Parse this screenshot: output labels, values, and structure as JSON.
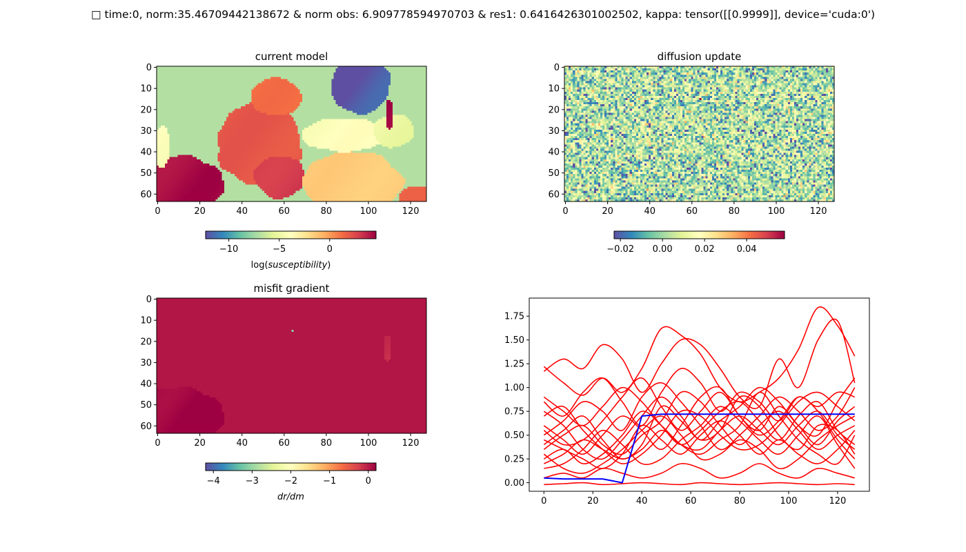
{
  "figure": {
    "suptitle": "□ time:0, norm:35.46709442138672 & norm obs: 6.909778594970703 & res1: 0.6416426301002502, kappa: tensor([[0.9999]], device='cuda:0')"
  },
  "colormap": {
    "name": "Spectral_r",
    "stops": [
      "#5e4fa2",
      "#3288bd",
      "#66c2a5",
      "#abdda4",
      "#e6f598",
      "#ffffbf",
      "#fee08b",
      "#fdae61",
      "#f46d43",
      "#d53e4f",
      "#9e0142"
    ]
  },
  "line_colors": {
    "samples": "#ff0000",
    "reference": "#0000ff"
  },
  "chart_data": [
    {
      "type": "heatmap",
      "id": "current-model",
      "title": "current model",
      "grid_shape": [
        64,
        128
      ],
      "x_ticks": [
        "0",
        "20",
        "40",
        "60",
        "80",
        "100",
        "120"
      ],
      "y_ticks": [
        "0",
        "10",
        "20",
        "30",
        "40",
        "50",
        "60"
      ],
      "x_tick_values": [
        0,
        20,
        40,
        60,
        80,
        100,
        120
      ],
      "y_tick_values": [
        0,
        10,
        20,
        30,
        40,
        50,
        60
      ],
      "colorbar": {
        "vmin": -12.3,
        "vmax": 4.6,
        "ticks": [
          "−10",
          "−5",
          "0"
        ],
        "tick_values": [
          -10,
          -5,
          0
        ],
        "label": "log(susceptibility)"
      },
      "regions": [
        {
          "shape": "field",
          "value": -7
        },
        {
          "shape": "ellipse",
          "cx": 8,
          "cy": 56,
          "rx": 24,
          "ry": 14,
          "value": 4.3
        },
        {
          "shape": "ellipse",
          "cx": 48,
          "cy": 36,
          "rx": 20,
          "ry": 20,
          "value": 2
        },
        {
          "shape": "ellipse",
          "cx": 58,
          "cy": 52,
          "rx": 12,
          "ry": 10,
          "value": 3
        },
        {
          "shape": "ellipse",
          "cx": 56,
          "cy": 14,
          "rx": 12,
          "ry": 9,
          "value": 1.2
        },
        {
          "shape": "ellipse",
          "cx": 92,
          "cy": 54,
          "rx": 24,
          "ry": 14,
          "value": -1.5
        },
        {
          "shape": "ellipse",
          "cx": 124,
          "cy": 62,
          "rx": 10,
          "ry": 6,
          "value": 1.5
        },
        {
          "shape": "ellipse",
          "cx": 88,
          "cy": 32,
          "rx": 20,
          "ry": 8,
          "value": -4
        },
        {
          "shape": "ellipse",
          "cx": 96,
          "cy": 8,
          "rx": 14,
          "ry": 14,
          "value": -12
        },
        {
          "shape": "ellipse",
          "cx": 112,
          "cy": 30,
          "rx": 10,
          "ry": 8,
          "value": -5
        },
        {
          "shape": "ellipse",
          "cx": 110,
          "cy": 22,
          "rx": 2,
          "ry": 7,
          "value": 4.3
        },
        {
          "shape": "ellipse",
          "cx": 2,
          "cy": 38,
          "rx": 4,
          "ry": 10,
          "value": -4
        }
      ]
    },
    {
      "type": "heatmap",
      "id": "diffusion-update",
      "title": "diffusion update",
      "grid_shape": [
        64,
        128
      ],
      "x_ticks": [
        "0",
        "20",
        "40",
        "60",
        "80",
        "100",
        "120"
      ],
      "y_ticks": [
        "0",
        "10",
        "20",
        "30",
        "40",
        "50",
        "60"
      ],
      "x_tick_values": [
        0,
        20,
        40,
        60,
        80,
        100,
        120
      ],
      "y_tick_values": [
        0,
        10,
        20,
        30,
        40,
        50,
        60
      ],
      "colorbar": {
        "vmin": -0.023,
        "vmax": 0.058,
        "ticks": [
          "−0.02",
          "0.00",
          "0.02",
          "0.04"
        ],
        "tick_values": [
          -0.02,
          0,
          0.02,
          0.04
        ],
        "label": ""
      },
      "noise": {
        "mean": 0.002,
        "spread": 0.02,
        "seed": 7
      },
      "hotspots": [
        {
          "x": 64,
          "y": 15,
          "value": 0.058
        }
      ]
    },
    {
      "type": "heatmap",
      "id": "misfit-gradient",
      "title": "misfit gradient",
      "grid_shape": [
        64,
        128
      ],
      "x_ticks": [
        "0",
        "20",
        "40",
        "60",
        "80",
        "100",
        "120"
      ],
      "y_ticks": [
        "0",
        "10",
        "20",
        "30",
        "40",
        "50",
        "60"
      ],
      "x_tick_values": [
        0,
        20,
        40,
        60,
        80,
        100,
        120
      ],
      "y_tick_values": [
        0,
        10,
        20,
        30,
        40,
        50,
        60
      ],
      "colorbar": {
        "vmin": -4.2,
        "vmax": 0.2,
        "ticks": [
          "−4",
          "−3",
          "−2",
          "−1",
          "0"
        ],
        "tick_values": [
          -4,
          -3,
          -2,
          -1,
          0
        ],
        "label": "dr/dm"
      },
      "regions": [
        {
          "shape": "field",
          "value": 0.05
        },
        {
          "shape": "ellipse",
          "cx": 8,
          "cy": 56,
          "rx": 24,
          "ry": 14,
          "value": 0.2
        },
        {
          "shape": "ellipse",
          "cx": 109,
          "cy": 23,
          "rx": 2,
          "ry": 6,
          "value": -0.15
        },
        {
          "shape": "ellipse",
          "cx": 64,
          "cy": 15,
          "rx": 0.6,
          "ry": 0.6,
          "value": -3.2
        }
      ]
    },
    {
      "type": "line",
      "id": "profiles",
      "title": "",
      "xlim": [
        -6,
        133
      ],
      "ylim": [
        -0.09,
        1.94
      ],
      "x_ticks": [
        "0",
        "20",
        "40",
        "60",
        "80",
        "100",
        "120"
      ],
      "x_tick_values": [
        0,
        20,
        40,
        60,
        80,
        100,
        120
      ],
      "y_ticks": [
        "0.00",
        "0.25",
        "0.50",
        "0.75",
        "1.00",
        "1.25",
        "1.50",
        "1.75"
      ],
      "y_tick_values": [
        0,
        0.25,
        0.5,
        0.75,
        1.0,
        1.25,
        1.5,
        1.75
      ],
      "x": [
        0,
        8,
        16,
        24,
        32,
        40,
        48,
        56,
        64,
        72,
        80,
        88,
        96,
        104,
        112,
        120,
        127
      ],
      "series": [
        {
          "role": "samples",
          "values": [
            1.22,
            1.05,
            0.92,
            1.1,
            0.95,
            1.2,
            1.62,
            1.55,
            1.35,
            1.0,
            0.85,
            0.95,
            1.1,
            1.4,
            1.84,
            1.65,
            1.33
          ]
        },
        {
          "role": "samples",
          "values": [
            1.17,
            1.3,
            1.2,
            1.45,
            1.3,
            0.95,
            1.25,
            1.5,
            1.45,
            1.2,
            0.9,
            0.8,
            1.3,
            1.0,
            1.5,
            1.7,
            1.05
          ]
        },
        {
          "role": "samples",
          "values": [
            0.85,
            0.7,
            0.95,
            1.1,
            0.85,
            0.6,
            0.95,
            1.2,
            1.05,
            0.75,
            0.95,
            0.85,
            0.65,
            0.9,
            0.8,
            0.95,
            0.9
          ]
        },
        {
          "role": "samples",
          "values": [
            0.6,
            0.45,
            0.3,
            0.5,
            0.7,
            0.55,
            0.35,
            0.6,
            0.9,
            1.0,
            0.7,
            0.55,
            0.8,
            0.6,
            0.4,
            0.65,
            0.8
          ]
        },
        {
          "role": "samples",
          "values": [
            0.4,
            0.55,
            0.7,
            0.45,
            0.25,
            0.4,
            0.8,
            0.65,
            0.45,
            0.55,
            0.9,
            0.8,
            0.5,
            0.35,
            0.6,
            0.55,
            0.3
          ]
        },
        {
          "role": "samples",
          "values": [
            0.25,
            0.35,
            0.2,
            0.3,
            0.5,
            0.75,
            0.6,
            0.4,
            0.3,
            0.45,
            0.6,
            0.95,
            0.7,
            0.45,
            0.3,
            0.2,
            0.5
          ]
        },
        {
          "role": "samples",
          "values": [
            0.7,
            0.8,
            0.55,
            0.35,
            0.2,
            0.3,
            0.5,
            0.75,
            0.7,
            0.5,
            0.35,
            0.4,
            0.6,
            0.85,
            0.95,
            0.8,
            0.65
          ]
        },
        {
          "role": "samples",
          "values": [
            0.15,
            0.2,
            0.35,
            0.55,
            0.4,
            0.2,
            0.25,
            0.45,
            0.6,
            0.8,
            0.65,
            0.45,
            0.3,
            0.5,
            0.7,
            0.4,
            0.15
          ]
        },
        {
          "role": "samples",
          "values": [
            0.5,
            0.65,
            0.85,
            0.75,
            0.55,
            0.9,
            1.05,
            0.85,
            0.6,
            0.35,
            0.5,
            0.7,
            0.9,
            0.75,
            0.55,
            0.7,
            1.0
          ]
        },
        {
          "role": "samples",
          "values": [
            0.3,
            0.15,
            0.1,
            0.2,
            0.35,
            0.55,
            0.7,
            0.5,
            0.25,
            0.3,
            0.45,
            0.35,
            0.15,
            0.25,
            0.45,
            0.6,
            0.7
          ]
        },
        {
          "role": "samples",
          "values": [
            0.9,
            0.75,
            0.6,
            0.8,
            1.0,
            0.85,
            0.6,
            0.4,
            0.55,
            0.75,
            0.85,
            0.65,
            0.45,
            0.7,
            0.85,
            0.55,
            0.4
          ]
        },
        {
          "role": "samples",
          "values": [
            0.05,
            0.1,
            0.05,
            0.15,
            0.1,
            0.05,
            0.1,
            0.2,
            0.15,
            0.05,
            0.1,
            0.2,
            0.1,
            0.05,
            0.15,
            0.1,
            0.05
          ]
        },
        {
          "role": "samples",
          "values": [
            -0.02,
            -0.01,
            0.0,
            -0.02,
            -0.01,
            0.0,
            -0.01,
            -0.02,
            0.0,
            -0.01,
            -0.02,
            -0.01,
            0.0,
            -0.01,
            -0.02,
            -0.01,
            -0.02
          ]
        },
        {
          "role": "samples",
          "values": [
            0.55,
            0.4,
            0.45,
            0.65,
            0.9,
            1.1,
            0.8,
            0.55,
            0.75,
            0.95,
            0.7,
            0.5,
            0.65,
            0.9,
            0.75,
            0.45,
            0.25
          ]
        },
        {
          "role": "samples",
          "values": [
            0.35,
            0.5,
            0.6,
            0.4,
            0.3,
            0.5,
            0.65,
            0.95,
            0.85,
            0.6,
            0.4,
            0.6,
            0.75,
            0.55,
            0.35,
            0.5,
            0.6
          ]
        },
        {
          "role": "samples",
          "values": [
            0.75,
            0.6,
            0.35,
            0.25,
            0.45,
            0.7,
            0.9,
            0.7,
            0.45,
            0.65,
            0.8,
            1.0,
            0.85,
            0.6,
            0.5,
            0.85,
            1.1
          ]
        },
        {
          "role": "samples",
          "values": [
            0.2,
            0.3,
            0.45,
            0.35,
            0.25,
            0.35,
            0.55,
            0.4,
            0.35,
            0.55,
            0.7,
            0.55,
            0.4,
            0.6,
            0.75,
            0.5,
            0.35
          ]
        },
        {
          "role": "samples",
          "values": [
            0.45,
            0.35,
            0.25,
            0.15,
            0.3,
            0.6,
            0.45,
            0.3,
            0.5,
            0.65,
            0.5,
            0.3,
            0.45,
            0.3,
            0.2,
            0.35,
            0.55
          ]
        },
        {
          "role": "reference",
          "values": [
            0.05,
            0.04,
            0.04,
            0.04,
            0.0,
            0.7,
            0.72,
            0.72,
            0.72,
            0.72,
            0.72,
            0.72,
            0.72,
            0.72,
            0.72,
            0.72,
            0.72
          ]
        }
      ]
    }
  ]
}
